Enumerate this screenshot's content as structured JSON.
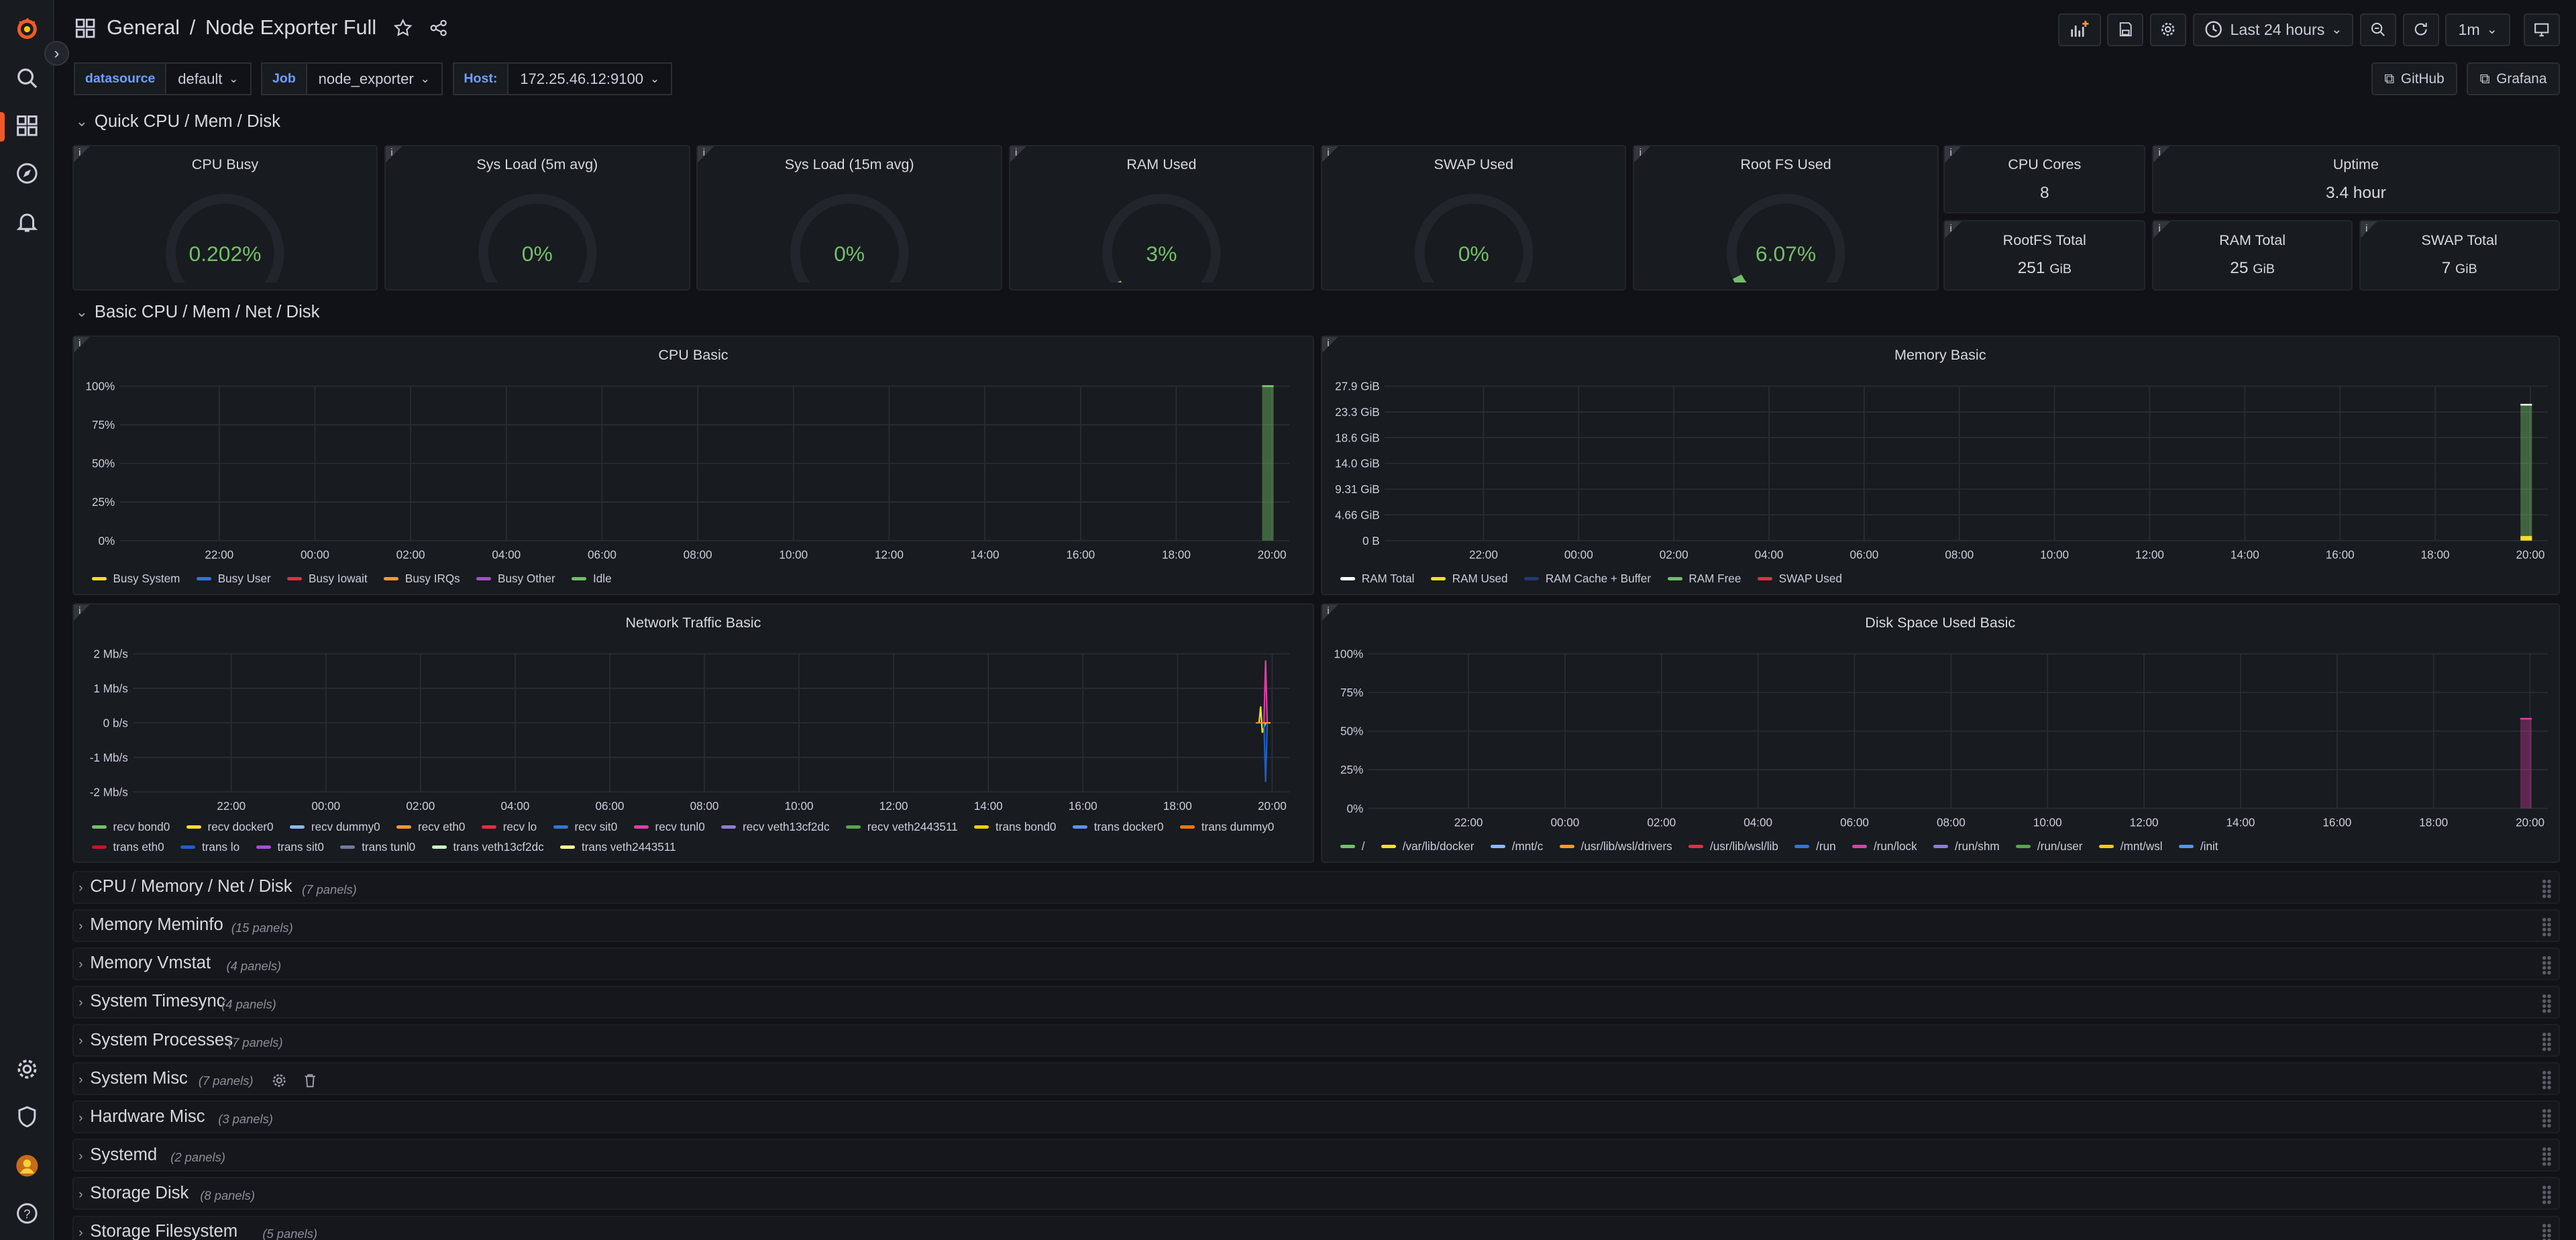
{
  "header": {
    "folder": "General",
    "separator": "/",
    "dashboard_title": "Node Exporter Full",
    "time_range": "Last 24 hours",
    "refresh": "1m"
  },
  "variables": [
    {
      "label": "datasource",
      "value": "default"
    },
    {
      "label": "Job",
      "value": "node_exporter"
    },
    {
      "label": "Host:",
      "value": "172.25.46.12:9100"
    }
  ],
  "links": {
    "github": "GitHub",
    "grafana": "Grafana"
  },
  "rows": {
    "quick": "Quick CPU / Mem / Disk",
    "basic": "Basic CPU / Mem / Net / Disk"
  },
  "gauges": [
    {
      "title": "CPU Busy",
      "value": "0.202%",
      "fraction": 0.00202,
      "info": "i"
    },
    {
      "title": "Sys Load (5m avg)",
      "value": "0%",
      "fraction": 0,
      "info": "i"
    },
    {
      "title": "Sys Load (15m avg)",
      "value": "0%",
      "fraction": 0,
      "info": "i"
    },
    {
      "title": "RAM Used",
      "value": "3%",
      "fraction": 0.03,
      "info": "i"
    },
    {
      "title": "SWAP Used",
      "value": "0%",
      "fraction": 0,
      "info": "i"
    },
    {
      "title": "Root FS Used",
      "value": "6.07%",
      "fraction": 0.0607,
      "info": "i"
    }
  ],
  "stats": [
    {
      "title": "CPU Cores",
      "value": "8",
      "unit": "",
      "info": "i"
    },
    {
      "title": "Uptime",
      "value": "3.4 hour",
      "unit": "",
      "info": "i"
    },
    {
      "title": "RootFS Total",
      "value": "251",
      "unit": "GiB",
      "info": "i"
    },
    {
      "title": "RAM Total",
      "value": "25",
      "unit": "GiB",
      "info": "i"
    },
    {
      "title": "SWAP Total",
      "value": "7",
      "unit": "GiB",
      "info": "i"
    }
  ],
  "chart_data": [
    {
      "type": "area",
      "title": "CPU Basic",
      "y_ticks": [
        "100%",
        "75%",
        "50%",
        "25%",
        "0%"
      ],
      "x_ticks": [
        "22:00",
        "00:00",
        "02:00",
        "04:00",
        "06:00",
        "08:00",
        "10:00",
        "12:00",
        "14:00",
        "16:00",
        "18:00",
        "20:00"
      ],
      "series": [
        {
          "name": "Busy System",
          "color": "#fade2a"
        },
        {
          "name": "Busy User",
          "color": "#3274d9"
        },
        {
          "name": "Busy Iowait",
          "color": "#e02f44"
        },
        {
          "name": "Busy IRQs",
          "color": "#ff9830"
        },
        {
          "name": "Busy Other",
          "color": "#a352cc"
        },
        {
          "name": "Idle",
          "color": "#73bf69",
          "values": [
            100
          ],
          "x": [
            "20:00"
          ]
        }
      ]
    },
    {
      "type": "area",
      "title": "Memory Basic",
      "y_ticks": [
        "27.9 GiB",
        "23.3 GiB",
        "18.6 GiB",
        "14.0 GiB",
        "9.31 GiB",
        "4.66 GiB",
        "0 B"
      ],
      "x_ticks": [
        "22:00",
        "00:00",
        "02:00",
        "04:00",
        "06:00",
        "08:00",
        "10:00",
        "12:00",
        "14:00",
        "16:00",
        "18:00",
        "20:00"
      ],
      "series": [
        {
          "name": "RAM Total",
          "color": "#ffffff"
        },
        {
          "name": "RAM Used",
          "color": "#fade2a"
        },
        {
          "name": "RAM Cache + Buffer",
          "color": "#1f3a73"
        },
        {
          "name": "RAM Free",
          "color": "#73bf69"
        },
        {
          "name": "SWAP Used",
          "color": "#e02f44"
        }
      ]
    },
    {
      "type": "line",
      "title": "Network Traffic Basic",
      "y_ticks": [
        "2 Mb/s",
        "1 Mb/s",
        "0 b/s",
        "-1 Mb/s",
        "-2 Mb/s"
      ],
      "x_ticks": [
        "22:00",
        "00:00",
        "02:00",
        "04:00",
        "06:00",
        "08:00",
        "10:00",
        "12:00",
        "14:00",
        "16:00",
        "18:00",
        "20:00"
      ],
      "series": [
        {
          "name": "recv bond0",
          "color": "#73bf69"
        },
        {
          "name": "recv docker0",
          "color": "#fade2a"
        },
        {
          "name": "recv dummy0",
          "color": "#8ab8ff"
        },
        {
          "name": "recv eth0",
          "color": "#ff9830"
        },
        {
          "name": "recv lo",
          "color": "#e02f44"
        },
        {
          "name": "recv sit0",
          "color": "#3274d9"
        },
        {
          "name": "recv tunl0",
          "color": "#e03ea8"
        },
        {
          "name": "recv veth13cf2dc",
          "color": "#8f7bd6"
        },
        {
          "name": "recv veth2443511",
          "color": "#56a64b"
        },
        {
          "name": "trans bond0",
          "color": "#f2cc0c"
        },
        {
          "name": "trans docker0",
          "color": "#5794f2"
        },
        {
          "name": "trans dummy0",
          "color": "#ff780a"
        },
        {
          "name": "trans eth0",
          "color": "#c4162a"
        },
        {
          "name": "trans lo",
          "color": "#1f60c4"
        },
        {
          "name": "trans sit0",
          "color": "#a352cc"
        },
        {
          "name": "trans tunl0",
          "color": "#6e7a9e"
        },
        {
          "name": "trans veth13cf2dc",
          "color": "#c8f2c2"
        },
        {
          "name": "trans veth2443511",
          "color": "#fff899"
        }
      ]
    },
    {
      "type": "area",
      "title": "Disk Space Used Basic",
      "y_ticks": [
        "100%",
        "75%",
        "50%",
        "25%",
        "0%"
      ],
      "x_ticks": [
        "22:00",
        "00:00",
        "02:00",
        "04:00",
        "06:00",
        "08:00",
        "10:00",
        "12:00",
        "14:00",
        "16:00",
        "18:00",
        "20:00"
      ],
      "series": [
        {
          "name": "/",
          "color": "#73bf69"
        },
        {
          "name": "/var/lib/docker",
          "color": "#fade2a"
        },
        {
          "name": "/mnt/c",
          "color": "#8ab8ff"
        },
        {
          "name": "/usr/lib/wsl/drivers",
          "color": "#ff9830"
        },
        {
          "name": "/usr/lib/wsl/lib",
          "color": "#e02f44"
        },
        {
          "name": "/run",
          "color": "#3274d9"
        },
        {
          "name": "/run/lock",
          "color": "#e03ea8"
        },
        {
          "name": "/run/shm",
          "color": "#8f7bd6"
        },
        {
          "name": "/run/user",
          "color": "#56a64b"
        },
        {
          "name": "/mnt/wsl",
          "color": "#f2cc0c"
        },
        {
          "name": "/init",
          "color": "#5794f2"
        }
      ]
    }
  ],
  "collapsed_rows": [
    {
      "title": "CPU / Memory / Net / Disk",
      "count": "(7 panels)"
    },
    {
      "title": "Memory Meminfo",
      "count": "(15 panels)"
    },
    {
      "title": "Memory Vmstat",
      "count": "(4 panels)"
    },
    {
      "title": "System Timesync",
      "count": "(4 panels)"
    },
    {
      "title": "System Processes",
      "count": "(7 panels)"
    },
    {
      "title": "System Misc",
      "count": "(7 panels)"
    },
    {
      "title": "Hardware Misc",
      "count": "(3 panels)"
    },
    {
      "title": "Systemd",
      "count": "(2 panels)"
    },
    {
      "title": "Storage Disk",
      "count": "(8 panels)"
    },
    {
      "title": "Storage Filesystem",
      "count": "(5 panels)"
    }
  ],
  "icons": {
    "logo": "grafana-logo",
    "search": "search-icon",
    "dashboards": "dashboards-icon",
    "explore": "compass-icon",
    "alerting": "bell-icon",
    "settings": "gear-icon",
    "admin": "shield-icon",
    "profile": "avatar",
    "help": "help-icon"
  },
  "colors": {
    "accent": "#f05a28",
    "green": "#73bf69",
    "orange": "#ff9830",
    "red": "#e02f44",
    "blue_var": "#6e9fff"
  }
}
